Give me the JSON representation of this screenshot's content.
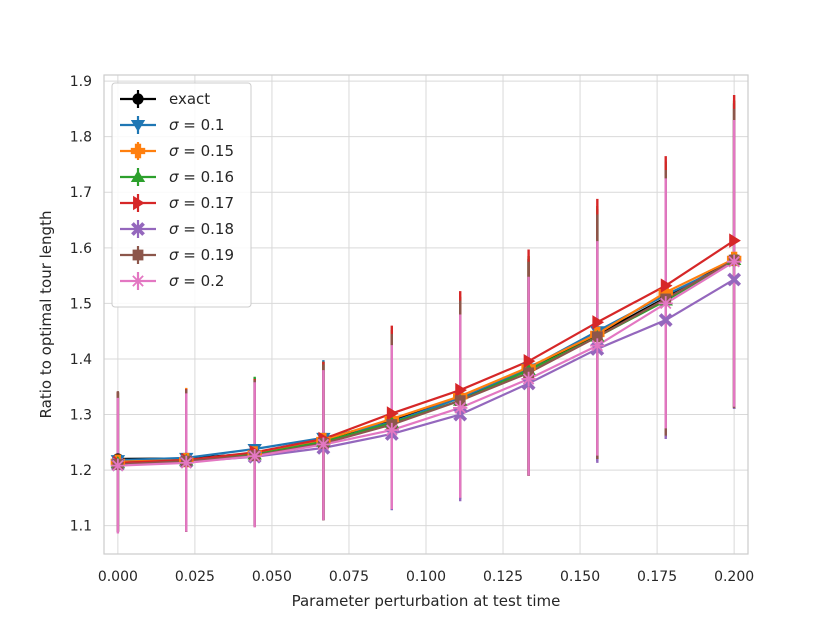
{
  "chart_data": {
    "type": "line",
    "xlabel": "Parameter perturbation at test time",
    "ylabel": "Ratio to optimal tour length",
    "x": [
      0.0,
      0.0222,
      0.0444,
      0.0667,
      0.0889,
      0.1111,
      0.1333,
      0.1556,
      0.1778,
      0.2
    ],
    "x_ticks": [
      "0.000",
      "0.025",
      "0.050",
      "0.075",
      "0.100",
      "0.125",
      "0.150",
      "0.175",
      "0.200"
    ],
    "y_ticks": [
      "1.1",
      "1.2",
      "1.3",
      "1.4",
      "1.5",
      "1.6",
      "1.7",
      "1.8",
      "1.9"
    ],
    "xlim": [
      -0.0045,
      0.2045
    ],
    "ylim": [
      1.049,
      1.911
    ],
    "grid": true,
    "legend_position": "top-left",
    "series": [
      {
        "name": "exact",
        "label_sigma": "",
        "color": "#000000",
        "marker": "circle",
        "values": [
          1.22,
          1.221,
          1.23,
          1.253,
          1.29,
          1.33,
          1.38,
          1.444,
          1.51,
          1.58
        ],
        "err_low": [
          1.09,
          1.09,
          1.1,
          1.11,
          1.13,
          1.15,
          1.19,
          1.22,
          1.26,
          1.31
        ],
        "err_high": [
          1.34,
          1.345,
          1.365,
          1.395,
          1.45,
          1.51,
          1.58,
          1.67,
          1.75,
          1.86
        ]
      },
      {
        "name": "",
        "label_sigma": "0.1",
        "color": "#1f77b4",
        "marker": "triangle-down",
        "values": [
          1.218,
          1.222,
          1.238,
          1.258,
          1.286,
          1.33,
          1.383,
          1.45,
          1.515,
          1.575
        ],
        "err_low": [
          1.088,
          1.089,
          1.098,
          1.11,
          1.128,
          1.148,
          1.19,
          1.216,
          1.262,
          1.312
        ],
        "err_high": [
          1.34,
          1.346,
          1.366,
          1.398,
          1.45,
          1.51,
          1.58,
          1.67,
          1.75,
          1.86
        ]
      },
      {
        "name": "",
        "label_sigma": "0.15",
        "color": "#ff7f0e",
        "marker": "plus",
        "values": [
          1.215,
          1.218,
          1.23,
          1.254,
          1.292,
          1.333,
          1.385,
          1.445,
          1.52,
          1.58
        ],
        "err_low": [
          1.089,
          1.089,
          1.098,
          1.11,
          1.13,
          1.15,
          1.19,
          1.22,
          1.262,
          1.312
        ],
        "err_high": [
          1.34,
          1.348,
          1.364,
          1.395,
          1.452,
          1.512,
          1.585,
          1.675,
          1.755,
          1.865
        ]
      },
      {
        "name": "",
        "label_sigma": "0.16",
        "color": "#2ca02c",
        "marker": "triangle-up",
        "values": [
          1.213,
          1.217,
          1.228,
          1.251,
          1.285,
          1.325,
          1.38,
          1.44,
          1.505,
          1.578
        ],
        "err_low": [
          1.089,
          1.089,
          1.098,
          1.11,
          1.13,
          1.15,
          1.19,
          1.22,
          1.262,
          1.312
        ],
        "err_high": [
          1.338,
          1.346,
          1.368,
          1.395,
          1.452,
          1.512,
          1.585,
          1.675,
          1.755,
          1.865
        ]
      },
      {
        "name": "",
        "label_sigma": "0.17",
        "color": "#d62728",
        "marker": "triangle-right",
        "values": [
          1.213,
          1.218,
          1.232,
          1.256,
          1.302,
          1.344,
          1.396,
          1.466,
          1.532,
          1.613
        ],
        "err_low": [
          1.089,
          1.089,
          1.098,
          1.11,
          1.13,
          1.15,
          1.19,
          1.22,
          1.262,
          1.312
        ],
        "err_high": [
          1.34,
          1.346,
          1.364,
          1.395,
          1.46,
          1.522,
          1.597,
          1.688,
          1.765,
          1.875
        ]
      },
      {
        "name": "",
        "label_sigma": "0.18",
        "color": "#9467bd",
        "marker": "x-filled",
        "values": [
          1.21,
          1.215,
          1.224,
          1.24,
          1.265,
          1.3,
          1.356,
          1.418,
          1.47,
          1.543
        ],
        "err_low": [
          1.089,
          1.089,
          1.098,
          1.11,
          1.128,
          1.144,
          1.19,
          1.213,
          1.256,
          1.31
        ],
        "err_high": [
          1.33,
          1.34,
          1.36,
          1.38,
          1.425,
          1.465,
          1.545,
          1.615,
          1.725,
          1.83
        ]
      },
      {
        "name": "",
        "label_sigma": "0.19",
        "color": "#8c564b",
        "marker": "square",
        "values": [
          1.21,
          1.216,
          1.226,
          1.248,
          1.282,
          1.325,
          1.375,
          1.44,
          1.508,
          1.578
        ],
        "err_low": [
          1.089,
          1.089,
          1.098,
          1.11,
          1.13,
          1.15,
          1.19,
          1.22,
          1.262,
          1.312
        ],
        "err_high": [
          1.342,
          1.345,
          1.362,
          1.39,
          1.445,
          1.505,
          1.575,
          1.66,
          1.74,
          1.85
        ]
      },
      {
        "name": "",
        "label_sigma": "0.2",
        "color": "#e377c2",
        "marker": "asterisk",
        "values": [
          1.208,
          1.213,
          1.225,
          1.246,
          1.272,
          1.312,
          1.364,
          1.424,
          1.5,
          1.575
        ],
        "err_low": [
          1.086,
          1.089,
          1.097,
          1.11,
          1.13,
          1.15,
          1.19,
          1.226,
          1.275,
          1.314
        ],
        "err_high": [
          1.33,
          1.338,
          1.358,
          1.38,
          1.425,
          1.48,
          1.548,
          1.612,
          1.725,
          1.83
        ]
      }
    ]
  }
}
